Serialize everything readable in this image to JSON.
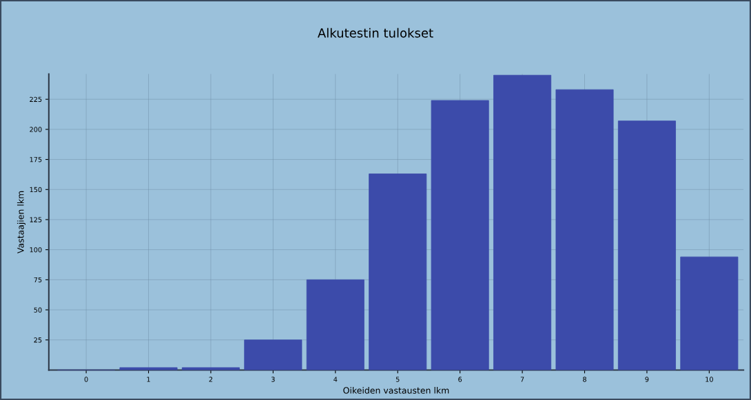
{
  "chart_data": {
    "type": "bar",
    "title": "Alkutestin tulokset",
    "xlabel": "Oikeiden vastausten lkm",
    "ylabel": "Vastaajien lkm",
    "categories": [
      "0",
      "1",
      "2",
      "3",
      "4",
      "5",
      "6",
      "7",
      "8",
      "9",
      "10"
    ],
    "values": [
      0,
      2,
      2,
      25,
      75,
      163,
      224,
      245,
      233,
      207,
      94
    ],
    "color": "#3c4baa",
    "ylim": [
      0,
      246
    ],
    "yticks": [
      25,
      50,
      75,
      100,
      125,
      150,
      175,
      200,
      225
    ],
    "grid": true
  }
}
